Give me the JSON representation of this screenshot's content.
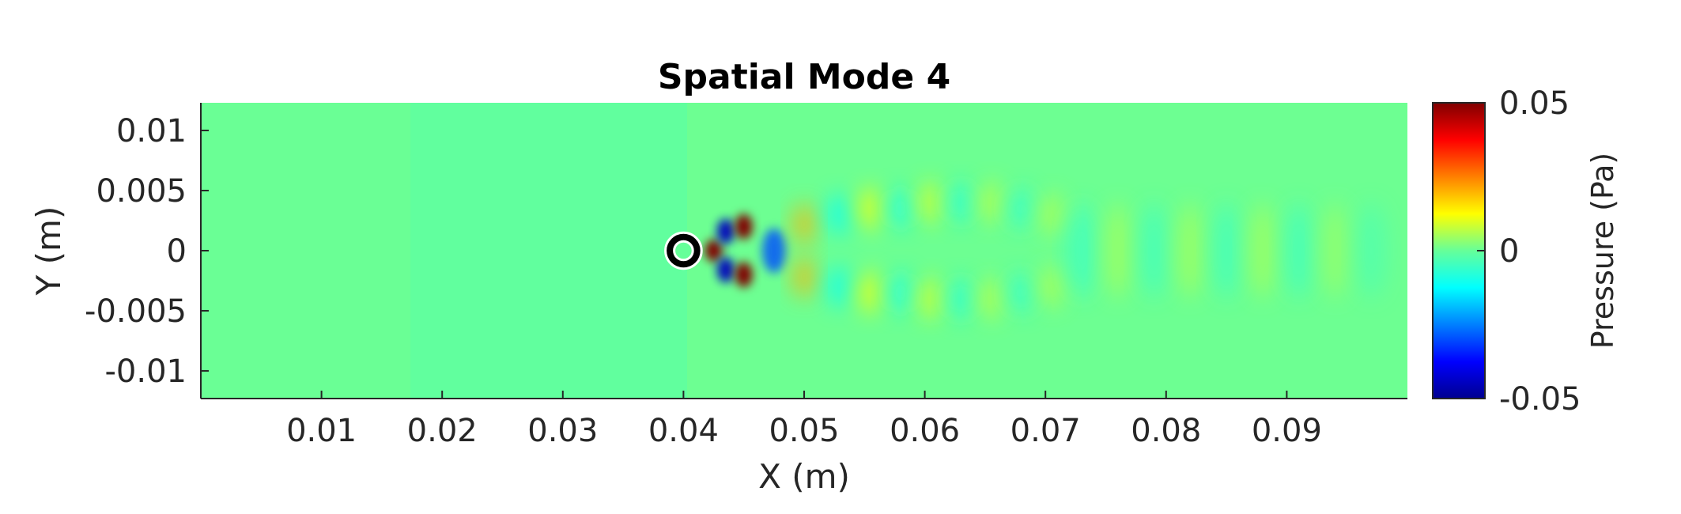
{
  "chart_data": {
    "type": "heatmap",
    "title": "Spatial Mode 4",
    "xlabel": "X (m)",
    "ylabel": "Y (m)",
    "xlim": [
      0,
      0.1
    ],
    "ylim": [
      -0.0123,
      0.0123
    ],
    "x_ticks": [
      {
        "value": 0.01,
        "label": "0.01"
      },
      {
        "value": 0.02,
        "label": "0.02"
      },
      {
        "value": 0.03,
        "label": "0.03"
      },
      {
        "value": 0.04,
        "label": "0.04"
      },
      {
        "value": 0.05,
        "label": "0.05"
      },
      {
        "value": 0.06,
        "label": "0.06"
      },
      {
        "value": 0.07,
        "label": "0.07"
      },
      {
        "value": 0.08,
        "label": "0.08"
      },
      {
        "value": 0.09,
        "label": "0.09"
      }
    ],
    "y_ticks": [
      {
        "value": 0.01,
        "label": "0.01"
      },
      {
        "value": 0.005,
        "label": "0.005"
      },
      {
        "value": 0,
        "label": "0"
      },
      {
        "value": -0.005,
        "label": "-0.005"
      },
      {
        "value": -0.01,
        "label": "-0.01"
      }
    ],
    "colorbar": {
      "label": "Pressure (Pa)",
      "range": [
        -0.05,
        0.05
      ],
      "colormap": "jet",
      "ticks": [
        {
          "value": 0.05,
          "label": "0.05"
        },
        {
          "value": 0,
          "label": "0"
        },
        {
          "value": -0.05,
          "label": "-0.05"
        }
      ]
    },
    "cylinder": {
      "x": 0.04,
      "y": 0,
      "radius": 0.001
    },
    "background_color": "#66ff99",
    "features": [
      {
        "x": 0.0425,
        "y": 0.0,
        "value": 0.05
      },
      {
        "x": 0.0435,
        "y": 0.0016,
        "value": -0.045
      },
      {
        "x": 0.0435,
        "y": -0.0016,
        "value": -0.045
      },
      {
        "x": 0.045,
        "y": 0.002,
        "value": 0.05
      },
      {
        "x": 0.045,
        "y": -0.002,
        "value": 0.05
      },
      {
        "x": 0.0475,
        "y": 0.0,
        "value": -0.03
      },
      {
        "x": 0.05,
        "y": 0.0022,
        "value": 0.02
      },
      {
        "x": 0.05,
        "y": -0.0022,
        "value": 0.02
      },
      {
        "x": 0.053,
        "y": 0.003,
        "value": -0.012
      },
      {
        "x": 0.053,
        "y": -0.003,
        "value": -0.012
      },
      {
        "x": 0.0555,
        "y": 0.0035,
        "value": 0.012
      },
      {
        "x": 0.0555,
        "y": -0.0035,
        "value": 0.012
      },
      {
        "x": 0.058,
        "y": 0.0035,
        "value": -0.01
      },
      {
        "x": 0.058,
        "y": -0.0035,
        "value": -0.01
      },
      {
        "x": 0.0605,
        "y": 0.004,
        "value": 0.01
      },
      {
        "x": 0.0605,
        "y": -0.004,
        "value": 0.01
      },
      {
        "x": 0.063,
        "y": 0.004,
        "value": -0.009
      },
      {
        "x": 0.063,
        "y": -0.004,
        "value": -0.009
      },
      {
        "x": 0.0655,
        "y": 0.004,
        "value": 0.008
      },
      {
        "x": 0.0655,
        "y": -0.004,
        "value": 0.008
      },
      {
        "x": 0.068,
        "y": 0.0035,
        "value": -0.008
      },
      {
        "x": 0.068,
        "y": -0.0035,
        "value": -0.008
      },
      {
        "x": 0.0705,
        "y": 0.003,
        "value": 0.007
      },
      {
        "x": 0.0705,
        "y": -0.003,
        "value": 0.007
      },
      {
        "x": 0.073,
        "y": 0.0,
        "value": -0.007
      },
      {
        "x": 0.076,
        "y": 0.0,
        "value": 0.006
      },
      {
        "x": 0.079,
        "y": 0.0,
        "value": -0.006
      },
      {
        "x": 0.082,
        "y": 0.0,
        "value": 0.006
      },
      {
        "x": 0.085,
        "y": 0.0,
        "value": -0.006
      },
      {
        "x": 0.088,
        "y": 0.0,
        "value": 0.006
      },
      {
        "x": 0.091,
        "y": 0.0,
        "value": -0.006
      },
      {
        "x": 0.094,
        "y": 0.0,
        "value": 0.005
      },
      {
        "x": 0.097,
        "y": 0.0,
        "value": -0.004
      }
    ]
  }
}
